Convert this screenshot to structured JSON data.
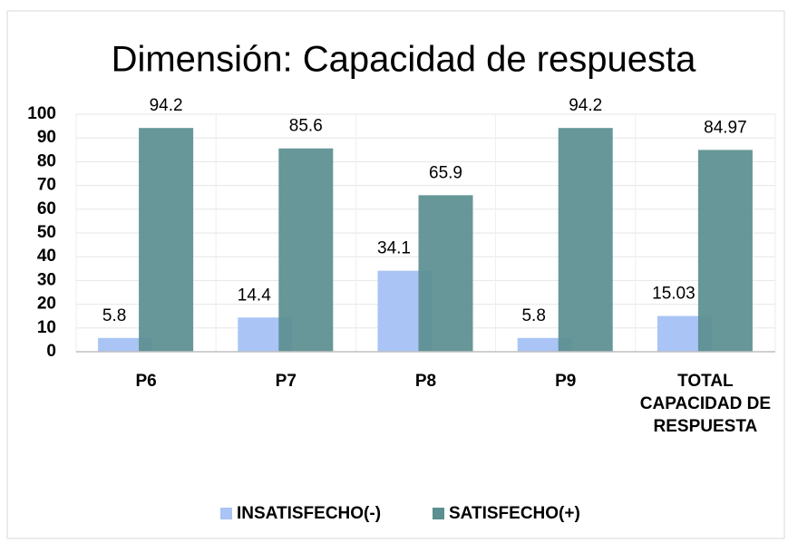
{
  "chart_data": {
    "type": "bar",
    "title": "Dimensión: Capacidad de respuesta",
    "categories": [
      "P6",
      "P7",
      "P8",
      "P9",
      "TOTAL CAPACIDAD DE RESPUESTA"
    ],
    "series": [
      {
        "name": "INSATISFECHO(-)",
        "color": "#a9c4f5",
        "values": [
          5.8,
          14.4,
          34.1,
          5.8,
          15.03
        ]
      },
      {
        "name": "SATISFECHO(+)",
        "color": "#5b8f90",
        "values": [
          94.2,
          85.6,
          65.9,
          94.2,
          84.97
        ]
      }
    ],
    "ylim": [
      0,
      100
    ],
    "yticks": [
      0,
      10,
      20,
      30,
      40,
      50,
      60,
      70,
      80,
      90,
      100
    ],
    "grid": true,
    "legend": "bottom"
  }
}
